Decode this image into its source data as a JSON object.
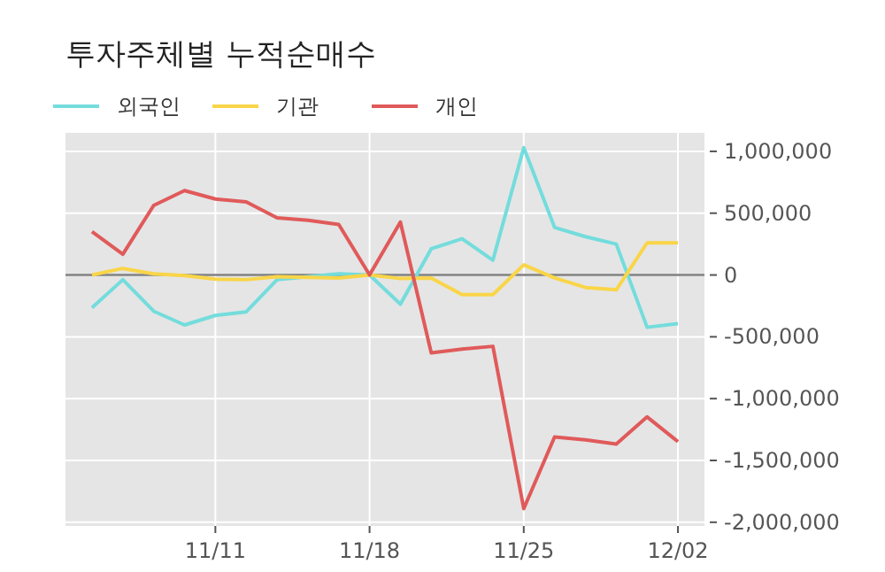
{
  "chart_data": {
    "type": "line",
    "title": "투자주체별 누적순매수",
    "categories": [
      null,
      null,
      null,
      null,
      "11/11",
      null,
      null,
      null,
      null,
      "11/18",
      null,
      null,
      null,
      null,
      "11/25",
      null,
      null,
      null,
      null,
      "12/02"
    ],
    "series": [
      {
        "name": "외국인",
        "color": "#74dcdc",
        "values": [
          -264000,
          -38000,
          -293000,
          -404000,
          -327000,
          -298000,
          -38000,
          -14000,
          10000,
          0,
          -236000,
          212000,
          293000,
          120000,
          1030000,
          385000,
          310000,
          250000,
          -423000,
          -394000
        ]
      },
      {
        "name": "기관",
        "color": "#f9d548",
        "values": [
          0,
          53000,
          10000,
          -5000,
          -34000,
          -38000,
          -14000,
          -19000,
          -24000,
          0,
          -29000,
          -24000,
          -159000,
          -159000,
          82000,
          -24000,
          -101000,
          -120000,
          260000,
          260000
        ]
      },
      {
        "name": "개인",
        "color": "#e05a5a",
        "values": [
          351000,
          168000,
          563000,
          683000,
          615000,
          591000,
          462000,
          442000,
          409000,
          0,
          428000,
          -630000,
          -600000,
          -577000,
          -1890000,
          -1310000,
          -1333000,
          -1367000,
          -1148000,
          -1348000
        ]
      }
    ],
    "ylim": [
      -2030000,
      1150000
    ],
    "yticks": [
      {
        "value": 1000000,
        "label": "1,000,000"
      },
      {
        "value": 500000,
        "label": "500,000"
      },
      0,
      {
        "value": -500000,
        "label": "-500,000"
      },
      {
        "value": -1000000,
        "label": "-1,000,000"
      },
      {
        "value": -1500000,
        "label": "-1,500,000"
      },
      {
        "value": -2000000,
        "label": "-2,000,000"
      }
    ],
    "ref_lines": [
      {
        "axis": "y",
        "value": 0,
        "color": "#808080"
      }
    ],
    "grid": true,
    "legend": "top left",
    "marker": "none",
    "line_style": "solid"
  }
}
